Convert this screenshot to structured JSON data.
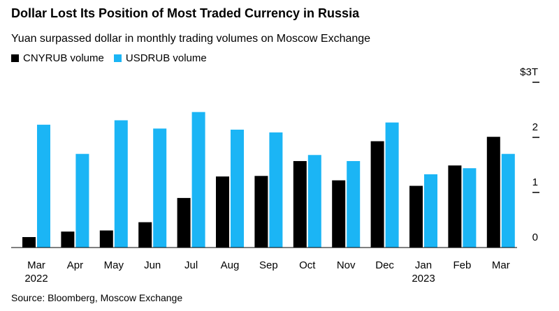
{
  "header": {
    "title": "Dollar Lost Its Position of Most Traded Currency in Russia",
    "subtitle": "Yuan surpassed dollar in monthly trading volumes on Moscow Exchange"
  },
  "legend": [
    {
      "label": "CNYRUB volume",
      "color": "#000000"
    },
    {
      "label": "USDRUB volume",
      "color": "#1bb5f5"
    }
  ],
  "footer": {
    "source": "Source: Bloomberg, Moscow Exchange"
  },
  "chart_data": {
    "type": "bar",
    "categories": [
      "Mar",
      "Apr",
      "May",
      "Jun",
      "Jul",
      "Aug",
      "Sep",
      "Oct",
      "Nov",
      "Dec",
      "Jan",
      "Feb",
      "Mar"
    ],
    "year_labels": [
      {
        "index": 0,
        "label": "2022"
      },
      {
        "index": 10,
        "label": "2023"
      }
    ],
    "series": [
      {
        "name": "CNYRUB volume",
        "color": "#000000",
        "values": [
          0.19,
          0.29,
          0.31,
          0.46,
          0.9,
          1.29,
          1.3,
          1.57,
          1.22,
          1.93,
          1.12,
          1.49,
          2.01
        ]
      },
      {
        "name": "USDRUB volume",
        "color": "#1bb5f5",
        "values": [
          2.23,
          1.7,
          2.31,
          2.16,
          2.46,
          2.14,
          2.09,
          1.68,
          1.57,
          2.27,
          1.33,
          1.44,
          1.7
        ]
      }
    ],
    "y_ticks": [
      {
        "value": 0,
        "label": "0"
      },
      {
        "value": 1,
        "label": "1"
      },
      {
        "value": 2,
        "label": "2"
      },
      {
        "value": 3,
        "label": "$3T"
      }
    ],
    "ylim": [
      0,
      3
    ],
    "y_axis_side": "right",
    "grid": false,
    "legend_position": "top-left"
  }
}
